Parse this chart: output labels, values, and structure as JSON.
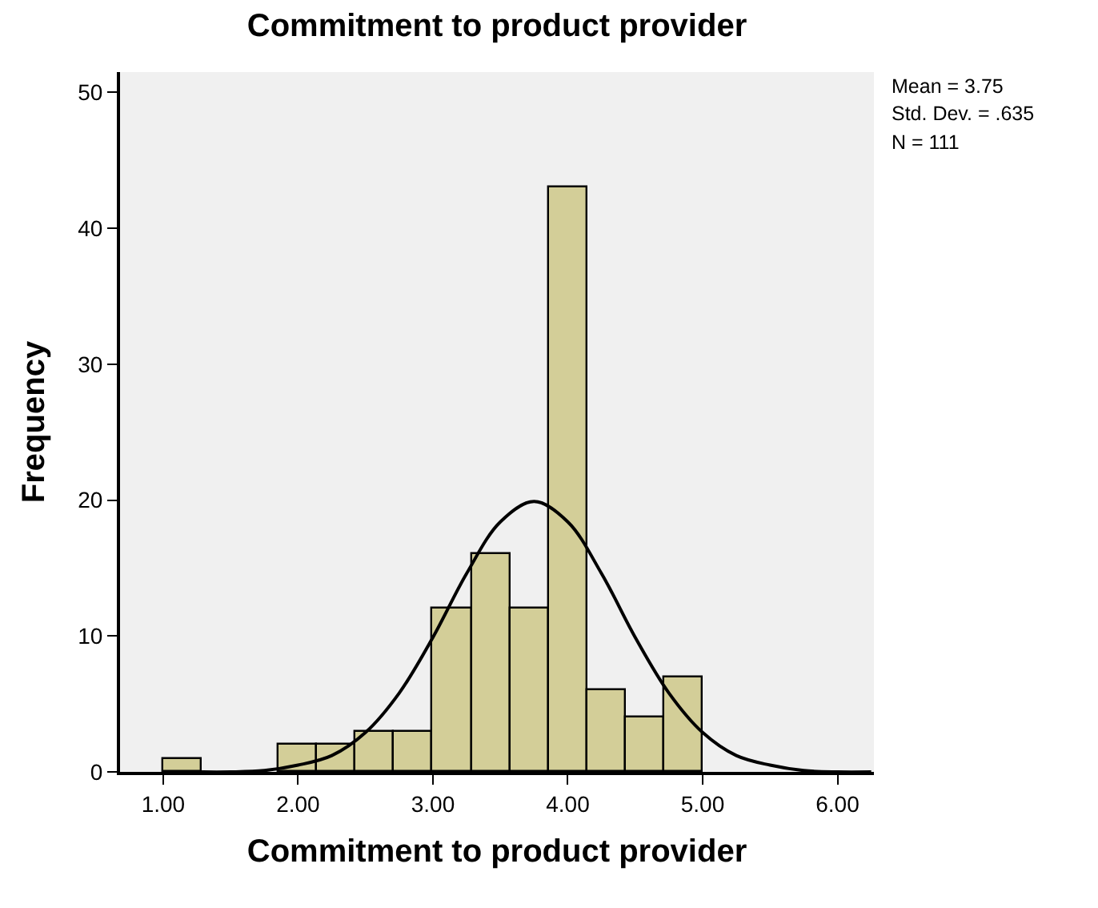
{
  "chart_data": {
    "type": "histogram",
    "title": "Commitment to product provider",
    "xlabel": "Commitment to product provider",
    "ylabel": "Frequency",
    "bins": [
      1.0,
      1.2857,
      1.5714,
      1.8571,
      2.1429,
      2.4286,
      2.7143,
      3.0,
      3.2857,
      3.5714,
      3.8571,
      4.1429,
      4.4286,
      4.7143,
      5.0
    ],
    "values": [
      1,
      0,
      0,
      2,
      2,
      3,
      3,
      12,
      16,
      12,
      43,
      6,
      4,
      7
    ],
    "color": "#d3ce98",
    "series": [
      {
        "type": "line",
        "color": "#000000",
        "x": [
          1.25,
          1.5,
          1.75,
          2.0,
          2.25,
          2.5,
          2.75,
          3.0,
          3.25,
          3.5,
          3.75,
          4.0,
          4.25,
          4.5,
          4.75,
          5.0,
          5.25,
          5.5,
          5.75,
          6.0,
          6.25
        ],
        "values": [
          0.0,
          0.0,
          0.1,
          0.5,
          1.2,
          2.9,
          5.8,
          9.9,
          14.6,
          18.4,
          19.9,
          18.4,
          14.6,
          9.9,
          5.8,
          2.9,
          1.2,
          0.5,
          0.1,
          0.0,
          0.0
        ]
      }
    ],
    "xlim": [
      0.68,
      6.27
    ],
    "xticks": [
      {
        "value": 1,
        "label": "1.00"
      },
      {
        "value": 2,
        "label": "2.00"
      },
      {
        "value": 3,
        "label": "3.00"
      },
      {
        "value": 4,
        "label": "4.00"
      },
      {
        "value": 5,
        "label": "5.00"
      },
      {
        "value": 6,
        "label": "6.00"
      }
    ],
    "ylim": [
      0,
      51.5
    ],
    "yticks": [
      0,
      10,
      20,
      30,
      40,
      50
    ],
    "annotations": [
      "Mean = 3.75",
      "Std. Dev. = .635",
      "N = 111"
    ]
  }
}
